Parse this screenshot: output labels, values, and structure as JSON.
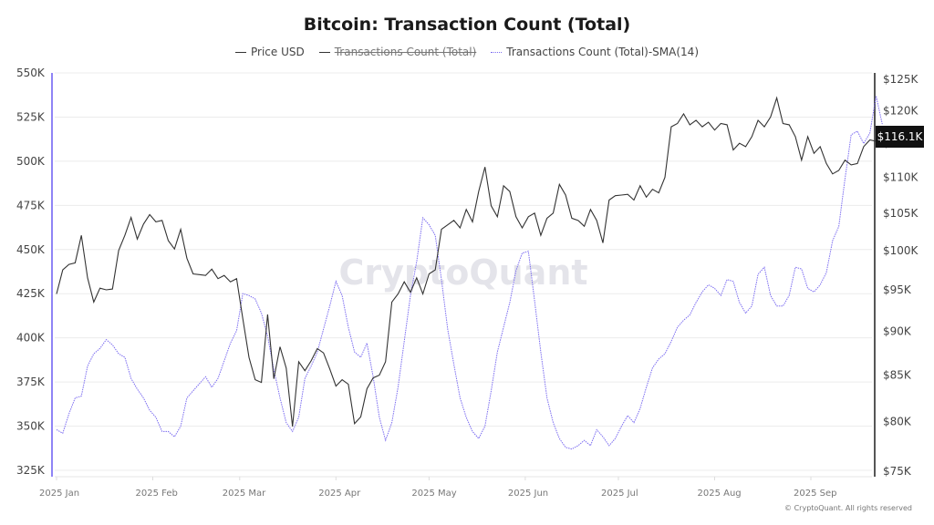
{
  "header": {
    "title": "Bitcoin: Transaction Count (Total)"
  },
  "legend": [
    {
      "label": "Price USD",
      "color": "#333333",
      "style": "solid",
      "hidden": false
    },
    {
      "label": "Transactions Count (Total)",
      "color": "#333333",
      "style": "solid",
      "hidden": true
    },
    {
      "label": "Transactions Count (Total)-SMA(14)",
      "color": "#7b6cf0",
      "style": "dotted",
      "hidden": false
    }
  ],
  "watermark": "CryptoQuant",
  "price_tag": "$116.1K",
  "copyright": "© CryptoQuant. All rights reserved",
  "colors": {
    "price": "#333333",
    "sma": "#7b6cf0",
    "left_axis": "#8f84f5",
    "right_axis": "#555555",
    "grid": "#ececec"
  },
  "chart_data": {
    "type": "line",
    "title": "Bitcoin: Transaction Count (Total)",
    "xlabel": "",
    "ylabel_left": "Transactions Count",
    "ylabel_right": "Price USD",
    "grid": true,
    "legend_position": "top",
    "x_ticks": [
      "2025 Jan",
      "2025 Feb",
      "2025 Mar",
      "2025 Apr",
      "2025 May",
      "2025 Jun",
      "2025 Jul",
      "2025 Aug",
      "2025 Sep"
    ],
    "y_left_ticks": [
      "550K",
      "525K",
      "500K",
      "475K",
      "450K",
      "425K",
      "400K",
      "375K",
      "350K",
      "325K"
    ],
    "y_left_range": [
      325000,
      550000
    ],
    "y_right_ticks": [
      "$125K",
      "$120K",
      "$115K",
      "$110K",
      "$105K",
      "$100K",
      "$95K",
      "$90K",
      "$85K",
      "$80K",
      "$75K"
    ],
    "y_right_range": [
      75000,
      125000
    ],
    "y_right_scale": "log",
    "series": [
      {
        "name": "Price USD",
        "axis": "right",
        "unit": "USD (thousands)",
        "day": [
          0,
          2,
          4,
          6,
          8,
          10,
          12,
          14,
          16,
          18,
          20,
          22,
          24,
          26,
          28,
          30,
          32,
          34,
          36,
          38,
          40,
          42,
          44,
          46,
          48,
          50,
          52,
          54,
          56,
          58,
          60,
          62,
          64,
          66,
          68,
          70,
          72,
          74,
          76,
          78,
          80,
          82,
          84,
          86,
          88,
          90,
          92,
          94,
          96,
          98,
          100,
          102,
          104,
          106,
          108,
          110,
          112,
          114,
          116,
          118,
          120,
          122,
          124,
          126,
          128,
          130,
          132,
          134,
          136,
          138,
          140,
          142,
          144,
          146,
          148,
          150,
          152,
          154,
          156,
          158,
          160,
          162,
          164,
          166,
          168,
          170,
          172,
          174,
          176,
          178,
          180,
          182,
          184,
          186,
          188,
          190,
          192,
          194,
          196,
          198,
          200,
          202,
          204,
          206,
          208,
          210,
          212,
          214,
          216,
          218,
          220,
          222,
          224,
          226,
          228,
          230,
          232,
          234,
          236,
          238,
          240,
          242,
          244,
          246,
          248,
          250,
          252,
          254,
          256,
          258,
          260,
          262,
          264,
          266
        ],
        "values": [
          94.5,
          97.5,
          98.2,
          98.4,
          102.0,
          96.5,
          93.5,
          95.2,
          95.0,
          95.1,
          100.0,
          102.0,
          104.4,
          101.5,
          103.5,
          104.8,
          103.8,
          104.0,
          101.3,
          100.2,
          102.8,
          99.0,
          97.0,
          96.9,
          96.8,
          97.6,
          96.4,
          96.8,
          96.0,
          96.4,
          91.5,
          87.0,
          84.5,
          84.2,
          92.0,
          84.6,
          88.2,
          85.8,
          79.5,
          86.5,
          85.5,
          86.6,
          88.0,
          87.5,
          85.7,
          83.8,
          84.5,
          84.0,
          79.8,
          80.5,
          83.5,
          84.7,
          85.0,
          86.5,
          93.5,
          94.5,
          96.0,
          94.7,
          96.5,
          94.5,
          97.0,
          97.5,
          102.8,
          103.4,
          104.0,
          103.0,
          105.5,
          103.8,
          108.0,
          111.5,
          106.0,
          104.5,
          108.8,
          108.0,
          104.5,
          103.0,
          104.5,
          105.0,
          102.0,
          104.3,
          105.0,
          109.0,
          107.5,
          104.3,
          104.0,
          103.2,
          105.5,
          104.0,
          101.0,
          106.8,
          107.4,
          107.5,
          107.6,
          106.8,
          108.8,
          107.2,
          108.3,
          107.8,
          110.0,
          117.5,
          118.0,
          119.5,
          117.8,
          118.5,
          117.5,
          118.2,
          117.0,
          118.0,
          117.8,
          114.0,
          115.0,
          114.5,
          116.0,
          118.5,
          117.5,
          119.0,
          122.0,
          118.0,
          117.8,
          116.0,
          112.5,
          116.0,
          113.5,
          114.5,
          112.0,
          110.5,
          111.0,
          112.5,
          111.8,
          112.0,
          114.5,
          115.5,
          115.3,
          116.5,
          116.1,
          116.1
        ],
        "last_value_label": "$116.1K"
      },
      {
        "name": "Transactions Count (Total)-SMA(14)",
        "axis": "left",
        "unit": "transactions (thousands)",
        "day": [
          0,
          2,
          4,
          6,
          8,
          10,
          12,
          14,
          16,
          18,
          20,
          22,
          24,
          26,
          28,
          30,
          32,
          34,
          36,
          38,
          40,
          42,
          44,
          46,
          48,
          50,
          52,
          54,
          56,
          58,
          60,
          62,
          64,
          66,
          68,
          70,
          72,
          74,
          76,
          78,
          80,
          82,
          84,
          86,
          88,
          90,
          92,
          94,
          96,
          98,
          100,
          102,
          104,
          106,
          108,
          110,
          112,
          114,
          116,
          118,
          120,
          122,
          124,
          126,
          128,
          130,
          132,
          134,
          136,
          138,
          140,
          142,
          144,
          146,
          148,
          150,
          152,
          154,
          156,
          158,
          160,
          162,
          164,
          166,
          168,
          170,
          172,
          174,
          176,
          178,
          180,
          182,
          184,
          186,
          188,
          190,
          192,
          194,
          196,
          198,
          200,
          202,
          204,
          206,
          208,
          210,
          212,
          214,
          216,
          218,
          220,
          222,
          224,
          226,
          228,
          230,
          232,
          234,
          236,
          238,
          240,
          242,
          244,
          246,
          248,
          250,
          252,
          254,
          256,
          258,
          260,
          262,
          264,
          266
        ],
        "values": [
          348,
          346,
          357,
          366,
          367,
          384,
          391,
          394,
          399,
          396,
          391,
          389,
          377,
          371,
          366,
          359,
          355,
          347,
          347,
          344,
          350,
          366,
          370,
          374,
          378,
          372,
          377,
          387,
          397,
          404,
          425,
          424,
          422,
          414,
          401,
          382,
          366,
          352,
          347,
          355,
          377,
          384,
          392,
          405,
          418,
          432,
          424,
          406,
          392,
          389,
          397,
          378,
          355,
          342,
          352,
          372,
          398,
          424,
          443,
          468,
          464,
          458,
          433,
          405,
          385,
          366,
          355,
          347,
          343,
          350,
          370,
          392,
          406,
          420,
          438,
          448,
          449,
          421,
          392,
          366,
          352,
          343,
          338,
          337,
          339,
          342,
          339,
          348,
          344,
          339,
          343,
          350,
          356,
          352,
          360,
          372,
          383,
          388,
          391,
          398,
          406,
          410,
          413,
          420,
          426,
          430,
          428,
          424,
          433,
          432,
          420,
          414,
          418,
          436,
          440,
          424,
          418,
          418,
          424,
          440,
          439,
          428,
          426,
          430,
          437,
          455,
          463,
          490,
          515,
          517,
          510,
          516,
          537,
          521,
          518,
          513,
          517,
          515
        ]
      }
    ]
  }
}
